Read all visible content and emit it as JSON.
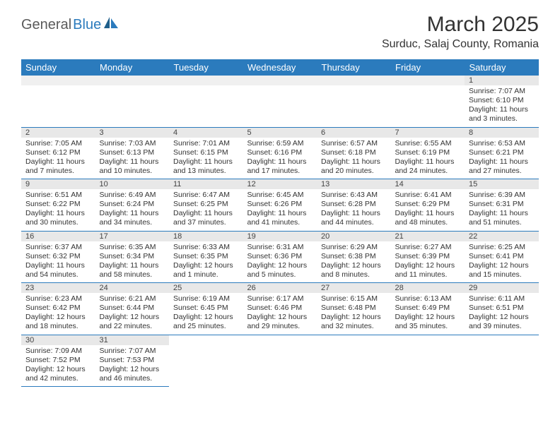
{
  "logo": {
    "text1": "General",
    "text2": "Blue"
  },
  "title": "March 2025",
  "subtitle": "Surduc, Salaj County, Romania",
  "colors": {
    "header_bg": "#2b7bbd",
    "header_text": "#ffffff",
    "daynum_bg": "#e8e8e8",
    "border": "#2b7bbd",
    "text": "#333333",
    "logo_gray": "#5a5a5a",
    "logo_blue": "#2b7bbd",
    "page_bg": "#ffffff"
  },
  "day_headers": [
    "Sunday",
    "Monday",
    "Tuesday",
    "Wednesday",
    "Thursday",
    "Friday",
    "Saturday"
  ],
  "weeks": [
    [
      null,
      null,
      null,
      null,
      null,
      null,
      {
        "n": "1",
        "sunrise": "7:07 AM",
        "sunset": "6:10 PM",
        "daylight": "11 hours and 3 minutes."
      }
    ],
    [
      {
        "n": "2",
        "sunrise": "7:05 AM",
        "sunset": "6:12 PM",
        "daylight": "11 hours and 7 minutes."
      },
      {
        "n": "3",
        "sunrise": "7:03 AM",
        "sunset": "6:13 PM",
        "daylight": "11 hours and 10 minutes."
      },
      {
        "n": "4",
        "sunrise": "7:01 AM",
        "sunset": "6:15 PM",
        "daylight": "11 hours and 13 minutes."
      },
      {
        "n": "5",
        "sunrise": "6:59 AM",
        "sunset": "6:16 PM",
        "daylight": "11 hours and 17 minutes."
      },
      {
        "n": "6",
        "sunrise": "6:57 AM",
        "sunset": "6:18 PM",
        "daylight": "11 hours and 20 minutes."
      },
      {
        "n": "7",
        "sunrise": "6:55 AM",
        "sunset": "6:19 PM",
        "daylight": "11 hours and 24 minutes."
      },
      {
        "n": "8",
        "sunrise": "6:53 AM",
        "sunset": "6:21 PM",
        "daylight": "11 hours and 27 minutes."
      }
    ],
    [
      {
        "n": "9",
        "sunrise": "6:51 AM",
        "sunset": "6:22 PM",
        "daylight": "11 hours and 30 minutes."
      },
      {
        "n": "10",
        "sunrise": "6:49 AM",
        "sunset": "6:24 PM",
        "daylight": "11 hours and 34 minutes."
      },
      {
        "n": "11",
        "sunrise": "6:47 AM",
        "sunset": "6:25 PM",
        "daylight": "11 hours and 37 minutes."
      },
      {
        "n": "12",
        "sunrise": "6:45 AM",
        "sunset": "6:26 PM",
        "daylight": "11 hours and 41 minutes."
      },
      {
        "n": "13",
        "sunrise": "6:43 AM",
        "sunset": "6:28 PM",
        "daylight": "11 hours and 44 minutes."
      },
      {
        "n": "14",
        "sunrise": "6:41 AM",
        "sunset": "6:29 PM",
        "daylight": "11 hours and 48 minutes."
      },
      {
        "n": "15",
        "sunrise": "6:39 AM",
        "sunset": "6:31 PM",
        "daylight": "11 hours and 51 minutes."
      }
    ],
    [
      {
        "n": "16",
        "sunrise": "6:37 AM",
        "sunset": "6:32 PM",
        "daylight": "11 hours and 54 minutes."
      },
      {
        "n": "17",
        "sunrise": "6:35 AM",
        "sunset": "6:34 PM",
        "daylight": "11 hours and 58 minutes."
      },
      {
        "n": "18",
        "sunrise": "6:33 AM",
        "sunset": "6:35 PM",
        "daylight": "12 hours and 1 minute."
      },
      {
        "n": "19",
        "sunrise": "6:31 AM",
        "sunset": "6:36 PM",
        "daylight": "12 hours and 5 minutes."
      },
      {
        "n": "20",
        "sunrise": "6:29 AM",
        "sunset": "6:38 PM",
        "daylight": "12 hours and 8 minutes."
      },
      {
        "n": "21",
        "sunrise": "6:27 AM",
        "sunset": "6:39 PM",
        "daylight": "12 hours and 11 minutes."
      },
      {
        "n": "22",
        "sunrise": "6:25 AM",
        "sunset": "6:41 PM",
        "daylight": "12 hours and 15 minutes."
      }
    ],
    [
      {
        "n": "23",
        "sunrise": "6:23 AM",
        "sunset": "6:42 PM",
        "daylight": "12 hours and 18 minutes."
      },
      {
        "n": "24",
        "sunrise": "6:21 AM",
        "sunset": "6:44 PM",
        "daylight": "12 hours and 22 minutes."
      },
      {
        "n": "25",
        "sunrise": "6:19 AM",
        "sunset": "6:45 PM",
        "daylight": "12 hours and 25 minutes."
      },
      {
        "n": "26",
        "sunrise": "6:17 AM",
        "sunset": "6:46 PM",
        "daylight": "12 hours and 29 minutes."
      },
      {
        "n": "27",
        "sunrise": "6:15 AM",
        "sunset": "6:48 PM",
        "daylight": "12 hours and 32 minutes."
      },
      {
        "n": "28",
        "sunrise": "6:13 AM",
        "sunset": "6:49 PM",
        "daylight": "12 hours and 35 minutes."
      },
      {
        "n": "29",
        "sunrise": "6:11 AM",
        "sunset": "6:51 PM",
        "daylight": "12 hours and 39 minutes."
      }
    ],
    [
      {
        "n": "30",
        "sunrise": "7:09 AM",
        "sunset": "7:52 PM",
        "daylight": "12 hours and 42 minutes."
      },
      {
        "n": "31",
        "sunrise": "7:07 AM",
        "sunset": "7:53 PM",
        "daylight": "12 hours and 46 minutes."
      },
      null,
      null,
      null,
      null,
      null
    ]
  ],
  "labels": {
    "sunrise": "Sunrise: ",
    "sunset": "Sunset: ",
    "daylight": "Daylight: "
  }
}
